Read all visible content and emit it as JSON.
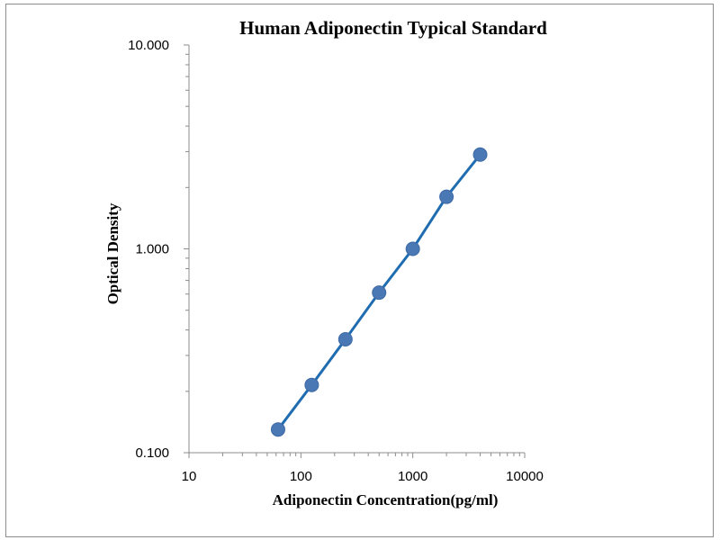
{
  "chart_data": {
    "type": "scatter",
    "title": "Human Adiponectin Typical Standard",
    "xlabel": "Adiponectin Concentration(pg/ml)",
    "ylabel": "Optical Density",
    "x_scale": "log",
    "y_scale": "log",
    "xlim": [
      10,
      10000
    ],
    "ylim": [
      0.1,
      10
    ],
    "x_ticks": [
      "10",
      "100",
      "1000",
      "10000"
    ],
    "y_ticks": [
      "0.100",
      "1.000",
      "10.000"
    ],
    "grid": false,
    "legend": "none",
    "series": [
      {
        "x": [
          62.5,
          125,
          250,
          500,
          1000,
          2000,
          4000
        ],
        "y": [
          0.13,
          0.215,
          0.36,
          0.61,
          1.0,
          1.8,
          2.9
        ],
        "marker_color": "#4a78b5",
        "line_color": "#1f6db0",
        "trendline": true
      }
    ]
  }
}
